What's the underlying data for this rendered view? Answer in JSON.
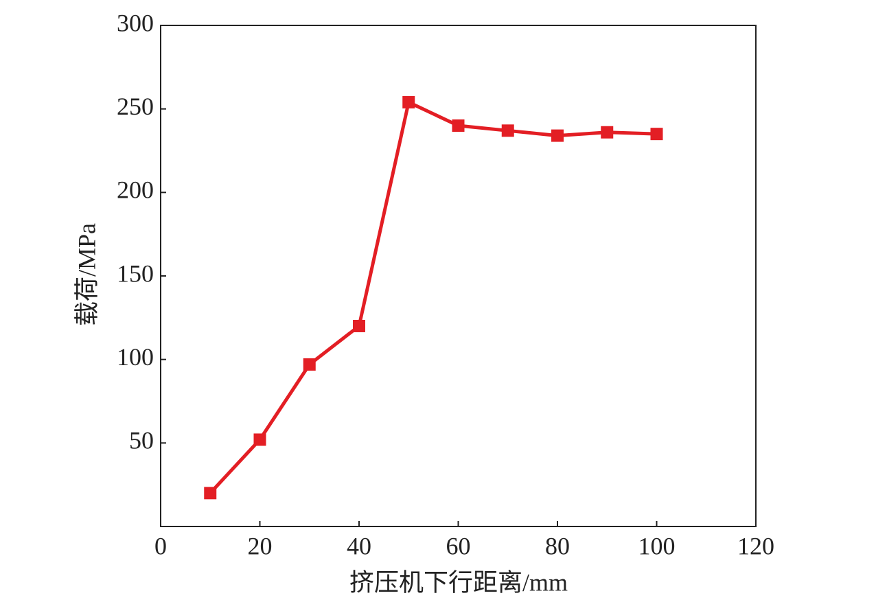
{
  "chart_data": {
    "type": "line",
    "x_label": "挤压机下行距离/mm",
    "y_label": "载荷/MPa",
    "x": [
      10,
      20,
      30,
      40,
      50,
      60,
      70,
      80,
      90,
      100
    ],
    "series": [
      {
        "color": "#e31e24",
        "values": [
          20,
          52,
          97,
          120,
          254,
          240,
          237,
          234,
          236,
          235
        ]
      }
    ],
    "xlim": [
      0,
      120
    ],
    "xticks": [
      0,
      20,
      40,
      60,
      80,
      100,
      120
    ],
    "ylim": [
      0,
      300
    ],
    "yticks": [
      50,
      100,
      150,
      200,
      250,
      300
    ],
    "grid": false
  }
}
